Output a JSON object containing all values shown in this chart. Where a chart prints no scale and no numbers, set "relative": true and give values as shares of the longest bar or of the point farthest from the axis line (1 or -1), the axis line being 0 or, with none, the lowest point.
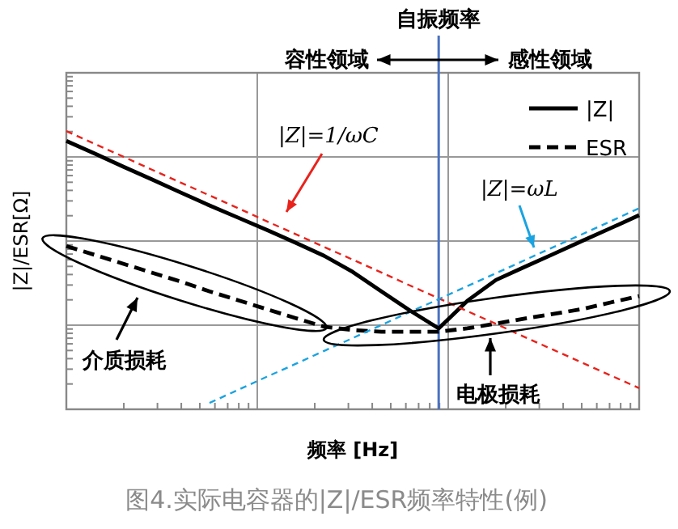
{
  "chart_data": {
    "type": "line",
    "xlabel": "频率 [Hz]",
    "ylabel": "|Z|/ESR[Ω]",
    "relative": true,
    "grid": true,
    "legend": "top right",
    "categories": [
      null,
      null,
      null,
      null,
      null,
      null,
      null,
      null,
      null,
      null,
      null,
      null,
      null,
      null,
      null,
      null,
      null,
      null,
      null,
      null,
      null
    ],
    "series": [
      {
        "name": "|Z|",
        "color": "#000000",
        "line_style": "solid",
        "values": [
          0.965,
          0.919,
          0.872,
          0.826,
          0.779,
          0.733,
          0.689,
          0.645,
          0.599,
          0.552,
          0.494,
          0.424,
          0.355,
          0.291,
          0.39,
          0.465,
          0.512,
          0.558,
          0.605,
          0.651,
          0.698
        ]
      },
      {
        "name": "ESR",
        "color": "#000000",
        "line_style": "dashed",
        "values": [
          0.587,
          0.555,
          0.523,
          0.491,
          0.459,
          0.424,
          0.392,
          0.36,
          0.328,
          0.297,
          0.285,
          0.279,
          0.279,
          0.279,
          0.291,
          0.308,
          0.326,
          0.343,
          0.36,
          0.384,
          0.407
        ]
      },
      {
        "color": "#e8231c",
        "line_style": "dashed",
        "values": [
          1,
          0.954,
          0.908,
          0.861,
          0.815,
          0.769,
          0.723,
          0.676,
          0.63,
          0.584,
          0.538,
          0.492,
          0.445,
          0.399,
          0.353,
          0.307,
          0.26,
          0.214,
          0.168,
          0.122,
          0.076
        ]
      },
      {
        "color": "#1aa3e0",
        "line_style": "dashed",
        "values": [
          null,
          null,
          null,
          null,
          null,
          0.023,
          0.07,
          0.117,
          0.163,
          0.21,
          0.256,
          0.303,
          0.35,
          0.396,
          0.443,
          0.489,
          0.536,
          0.583,
          0.629,
          0.676,
          0.723
        ]
      }
    ],
    "annotations": [
      "自振频率",
      "|Z|=1/ωC",
      "|Z|=ωL",
      "容性领域",
      "感性领域",
      "介质损耗",
      "电极损耗",
      "图4.实际电容器的|Z|/ESR频率特性(例)"
    ]
  }
}
